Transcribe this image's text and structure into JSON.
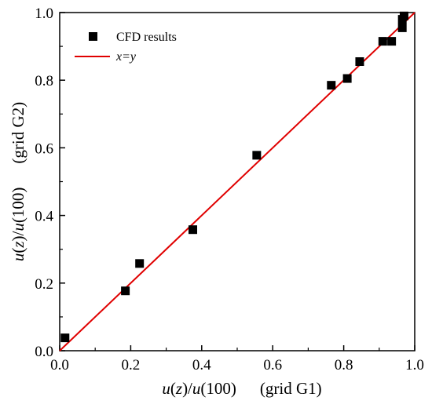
{
  "chart_data": {
    "type": "scatter",
    "xlim": [
      0.0,
      1.0
    ],
    "ylim": [
      0.0,
      1.0
    ],
    "x_ticks": [
      "0.0",
      "0.2",
      "0.4",
      "0.6",
      "0.8",
      "1.0"
    ],
    "y_ticks": [
      "0.0",
      "0.2",
      "0.4",
      "0.6",
      "0.8",
      "1.0"
    ],
    "xlabel": {
      "f1": "u",
      "p1": "(",
      "f2": "z",
      "p2": ")/",
      "f3": "u",
      "p3": "(100)",
      "suffix": "(grid G1)"
    },
    "ylabel": {
      "f1": "u",
      "p1": "(",
      "f2": "z",
      "p2": ")/",
      "f3": "u",
      "p3": "(100)",
      "suffix": "(grid G2)"
    },
    "grid": false,
    "legend_position": "top-left",
    "series": [
      {
        "name": "CFD results",
        "kind": "scatter",
        "marker": "square",
        "color": "#000000",
        "points": [
          [
            0.015,
            0.038
          ],
          [
            0.185,
            0.177
          ],
          [
            0.225,
            0.258
          ],
          [
            0.375,
            0.358
          ],
          [
            0.555,
            0.578
          ],
          [
            0.765,
            0.785
          ],
          [
            0.81,
            0.805
          ],
          [
            0.845,
            0.855
          ],
          [
            0.91,
            0.915
          ],
          [
            0.935,
            0.915
          ],
          [
            0.965,
            0.955
          ],
          [
            0.965,
            0.98
          ],
          [
            0.97,
            0.99
          ]
        ]
      },
      {
        "name": "x=y",
        "kind": "line",
        "color": "#e00000",
        "points": [
          [
            0.0,
            0.0
          ],
          [
            1.0,
            1.0
          ]
        ]
      }
    ]
  }
}
